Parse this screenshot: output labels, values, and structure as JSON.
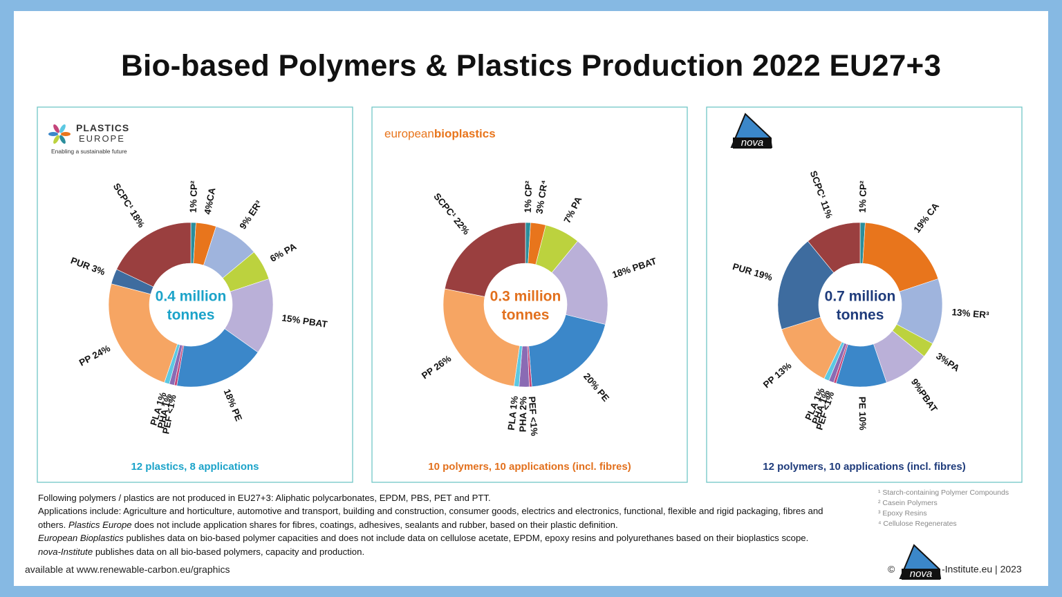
{
  "title": "Bio-based Polymers & Plastics Production 2022 EU27+3",
  "chart_data": [
    {
      "type": "pie",
      "source": [
        "PLASTICS",
        "EUROPE"
      ],
      "source_tagline": "Enabling a sustainable future",
      "center_label": [
        "0.4 million",
        "tonnes"
      ],
      "subtitle": "12 plastics, 8 applications",
      "accent": "#1ba3c9",
      "values": [
        1,
        4,
        9,
        6,
        15,
        18,
        0.5,
        1,
        1,
        24,
        3,
        18
      ],
      "value_labels": [
        "1% CP²",
        "4%CA",
        "9% ER³",
        "6% PA",
        "15% PBAT",
        "18% PE",
        "PEF <1%",
        "PHA 1%",
        "PLA 1%",
        "PP 24%",
        "PUR 3%",
        "SCPC¹ 18%"
      ],
      "colors": [
        "#2b8e9c",
        "#e8751c",
        "#9fb4dd",
        "#bcd23e",
        "#bab0d8",
        "#3b87c9",
        "#c4457a",
        "#8a6bb4",
        "#5cc8e2",
        "#f6a563",
        "#3e6c9f",
        "#9a3f3f"
      ]
    },
    {
      "type": "pie",
      "source": [
        "european",
        "bioplastics"
      ],
      "center_label": [
        "0.3 million",
        "tonnes"
      ],
      "subtitle": "10 polymers, 10 applications (incl. fibres)",
      "accent": "#e2701d",
      "values": [
        1,
        3,
        7,
        18,
        20,
        0.5,
        2,
        1,
        26,
        22
      ],
      "value_labels": [
        "1% CP²",
        "3% CR⁴",
        "7% PA",
        "18% PBAT",
        "20% PE",
        "PEF <1%",
        "PHA 2%",
        "PLA 1%",
        "PP 26%",
        "SCPC¹ 22%"
      ],
      "colors": [
        "#2b8e9c",
        "#e8751c",
        "#bcd23e",
        "#bab0d8",
        "#3b87c9",
        "#c4457a",
        "#8a6bb4",
        "#5cc8e2",
        "#f6a563",
        "#9a3f3f"
      ]
    },
    {
      "type": "pie",
      "source": [
        "nova"
      ],
      "center_label": [
        "0.7 million",
        "tonnes"
      ],
      "subtitle": "12 polymers, 10 applications (incl. fibres)",
      "accent": "#1e3b7b",
      "values": [
        1,
        19,
        13,
        3,
        9,
        10,
        0.5,
        1,
        1,
        13,
        19,
        11
      ],
      "value_labels": [
        "1% CP²",
        "19% CA",
        "13% ER³",
        "3%PA",
        "9%PBAT",
        "PE 10%",
        "PEF <1%",
        "PHA 1%",
        "PLA 1%",
        "PP 13%",
        "PUR 19%",
        "SCPC¹ 11%"
      ],
      "colors": [
        "#2b8e9c",
        "#e8751c",
        "#9fb4dd",
        "#bcd23e",
        "#bab0d8",
        "#3b87c9",
        "#c4457a",
        "#8a6bb4",
        "#5cc8e2",
        "#f6a563",
        "#3e6c9f",
        "#9a3f3f"
      ]
    }
  ],
  "notes": [
    {
      "text": "Following polymers / plastics are not produced in EU27+3: Aliphatic polycarbonates, EPDM, PBS, PET and PTT."
    },
    {
      "text": "Applications include: Agriculture and horticulture, automotive and transport, building and construction, consumer goods, electrics and electronics, functional, flexible and rigid packaging, fibres and others.",
      "emphasis": "Plastics Europe",
      "after": " does not include application shares for fibres, coatings, adhesives, sealants and rubber, based on their plastic definition."
    },
    {
      "emphasis": "European Bioplastics",
      "after": " publishes data on bio-based polymer capacities and does not include data on cellulose acetate, EPDM, epoxy resins and polyurethanes based on their bioplastics scope."
    },
    {
      "emphasis": "nova-Institute",
      "after": " publishes data on all bio-based polymers, capacity and production."
    }
  ],
  "footnotes": [
    "¹ Starch-containing Polymer Compounds",
    "² Casein Polymers",
    "³ Epoxy Resins",
    "⁴ Cellulose Regenerates"
  ],
  "link": "available at www.renewable-carbon.eu/graphics",
  "copyright": [
    "©",
    "nova",
    "-Institute.eu | 2023"
  ]
}
